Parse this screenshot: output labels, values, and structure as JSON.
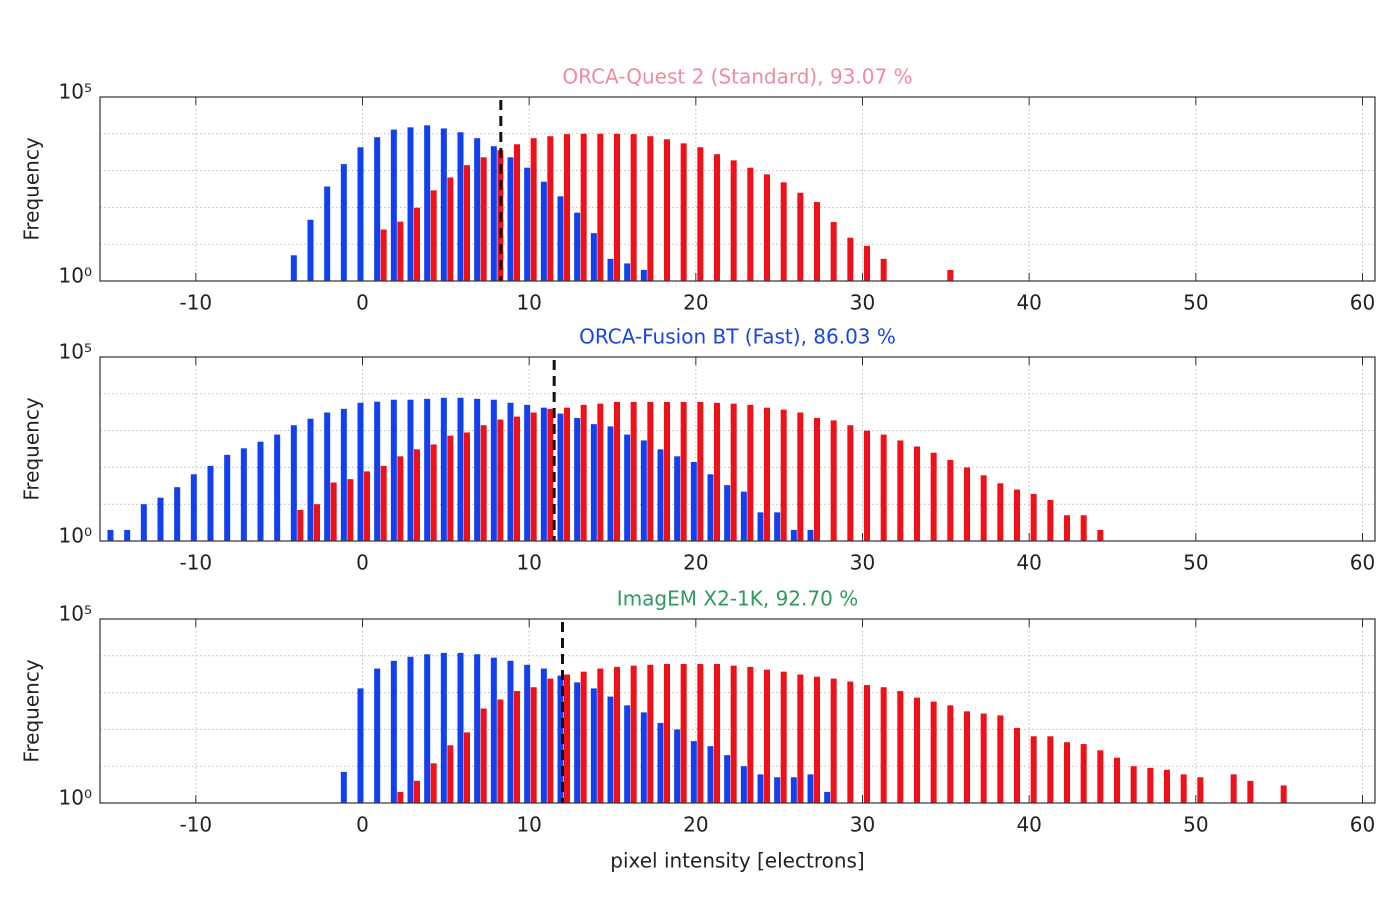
{
  "chart_data": [
    {
      "type": "bar",
      "title": "ORCA-Quest 2 (Standard), 93.07 %",
      "title_color": "#f28aa0",
      "ylabel": "Frequency",
      "xlim": [
        -15.75,
        60.75
      ],
      "xticks": [
        -10,
        0,
        10,
        20,
        30,
        40,
        50,
        60
      ],
      "ylim": [
        1,
        100000
      ],
      "log": true,
      "yticks": [
        {
          "value": 1,
          "label": "10⁰"
        },
        {
          "value": 100000,
          "label": "10⁵"
        }
      ],
      "yminor": [
        10,
        100,
        1000,
        10000
      ],
      "grid": true,
      "threshold": 8.3,
      "series": [
        {
          "color": "#1240ee",
          "x": [
            -4,
            -3,
            -2,
            -1,
            0,
            1,
            2,
            3,
            4,
            5,
            6,
            7,
            8,
            9,
            10,
            11,
            12,
            13,
            14,
            15,
            16,
            17
          ],
          "values": [
            5,
            46,
            370,
            1500,
            4300,
            8100,
            13000,
            15000,
            17000,
            14000,
            11000,
            7600,
            4600,
            2300,
            1200,
            500,
            200,
            72,
            20,
            4,
            3,
            2
          ]
        },
        {
          "color": "#f01018",
          "x": [
            1,
            2,
            3,
            4,
            5,
            6,
            7,
            8,
            9,
            10,
            11,
            12,
            13,
            14,
            15,
            16,
            17,
            18,
            19,
            20,
            21,
            22,
            23,
            24,
            25,
            26,
            27,
            28,
            29,
            30,
            31,
            35
          ],
          "values": [
            25,
            41,
            98,
            290,
            650,
            1400,
            2300,
            3600,
            5200,
            7600,
            8600,
            9800,
            10000,
            10000,
            10000,
            9800,
            8600,
            7100,
            5500,
            4300,
            2800,
            1900,
            1200,
            790,
            480,
            250,
            140,
            40,
            15,
            9,
            4,
            2
          ]
        }
      ]
    },
    {
      "type": "bar",
      "title": "ORCA-Fusion BT (Fast), 86.03 %",
      "title_color": "#1a44e0",
      "ylabel": "Frequency",
      "xlim": [
        -15.75,
        60.75
      ],
      "xticks": [
        -10,
        0,
        10,
        20,
        30,
        40,
        50,
        60
      ],
      "ylim": [
        1,
        100000
      ],
      "log": true,
      "yticks": [
        {
          "value": 1,
          "label": "10⁰"
        },
        {
          "value": 100000,
          "label": "10⁵"
        }
      ],
      "yminor": [
        10,
        100,
        1000,
        10000
      ],
      "grid": true,
      "threshold": 11.5,
      "series": [
        {
          "color": "#1240ee",
          "x": [
            -15,
            -14,
            -13,
            -12,
            -11,
            -10,
            -9,
            -8,
            -7,
            -6,
            -5,
            -4,
            -3,
            -2,
            -1,
            0,
            1,
            2,
            3,
            4,
            5,
            6,
            7,
            8,
            9,
            10,
            11,
            12,
            13,
            14,
            15,
            16,
            17,
            18,
            19,
            20,
            21,
            22,
            23,
            24,
            25,
            26,
            27
          ],
          "values": [
            2,
            2,
            10,
            15,
            29,
            65,
            110,
            220,
            330,
            500,
            780,
            1400,
            2100,
            3100,
            3900,
            5700,
            6100,
            6900,
            6900,
            7300,
            7800,
            7800,
            7300,
            6900,
            5700,
            5000,
            4200,
            2900,
            2200,
            1500,
            1300,
            780,
            540,
            310,
            200,
            140,
            65,
            33,
            22,
            6,
            6,
            2,
            2
          ]
        },
        {
          "color": "#f01018",
          "x": [
            -4,
            -3,
            -2,
            -1,
            0,
            1,
            2,
            3,
            4,
            5,
            6,
            7,
            8,
            9,
            10,
            11,
            12,
            13,
            14,
            15,
            16,
            17,
            18,
            19,
            20,
            21,
            22,
            23,
            24,
            25,
            26,
            27,
            28,
            29,
            30,
            31,
            32,
            33,
            34,
            35,
            36,
            37,
            38,
            39,
            40,
            41,
            42,
            43,
            44
          ],
          "values": [
            7,
            10,
            39,
            48,
            78,
            110,
            200,
            310,
            420,
            730,
            890,
            1400,
            2000,
            2400,
            3100,
            3900,
            4200,
            5000,
            5400,
            6000,
            6000,
            6000,
            6000,
            6000,
            6000,
            5700,
            5400,
            5000,
            4200,
            3700,
            3100,
            2200,
            1900,
            1400,
            1000,
            780,
            540,
            370,
            250,
            160,
            100,
            61,
            37,
            25,
            19,
            13,
            5,
            5,
            2
          ]
        }
      ]
    },
    {
      "type": "bar",
      "title": "ImagEM X2-1K, 92.70 %",
      "title_color": "#2e9a5e",
      "ylabel": "Frequency",
      "xlabel": "pixel intensity [electrons]",
      "xlim": [
        -15.75,
        60.75
      ],
      "xticks": [
        -10,
        0,
        10,
        20,
        30,
        40,
        50,
        60
      ],
      "ylim": [
        1,
        100000
      ],
      "log": true,
      "yticks": [
        {
          "value": 1,
          "label": "10⁰"
        },
        {
          "value": 100000,
          "label": "10⁵"
        }
      ],
      "yminor": [
        10,
        100,
        1000,
        10000
      ],
      "grid": true,
      "threshold": 12,
      "series": [
        {
          "color": "#1240ee",
          "x": [
            -1,
            0,
            1,
            2,
            3,
            4,
            5,
            6,
            7,
            8,
            9,
            10,
            11,
            12,
            13,
            14,
            15,
            16,
            17,
            18,
            19,
            20,
            21,
            22,
            23,
            24,
            25,
            26,
            27,
            28
          ],
          "values": [
            7,
            1300,
            4500,
            7300,
            9400,
            11000,
            12000,
            12000,
            11000,
            8900,
            7300,
            5700,
            4500,
            2900,
            1900,
            1300,
            780,
            450,
            290,
            150,
            100,
            48,
            35,
            20,
            10,
            6,
            5,
            5,
            6,
            2
          ]
        },
        {
          "color": "#f01018",
          "x": [
            2,
            3,
            4,
            5,
            6,
            7,
            8,
            9,
            10,
            11,
            12,
            13,
            14,
            15,
            16,
            17,
            18,
            19,
            20,
            21,
            22,
            23,
            24,
            25,
            26,
            27,
            28,
            29,
            30,
            31,
            32,
            33,
            34,
            35,
            36,
            37,
            38,
            39,
            40,
            41,
            42,
            43,
            44,
            45,
            46,
            47,
            48,
            49,
            50,
            52,
            53,
            55
          ],
          "values": [
            2,
            4,
            12,
            37,
            83,
            370,
            650,
            1100,
            1400,
            2400,
            3100,
            3700,
            4500,
            5000,
            5400,
            5700,
            6000,
            6000,
            6000,
            6000,
            5400,
            5000,
            4200,
            3700,
            3100,
            2700,
            2400,
            2000,
            1600,
            1400,
            1100,
            730,
            570,
            450,
            310,
            270,
            240,
            110,
            65,
            65,
            45,
            40,
            27,
            17,
            10,
            9,
            8,
            6,
            5,
            6,
            4,
            3
          ]
        }
      ]
    }
  ]
}
